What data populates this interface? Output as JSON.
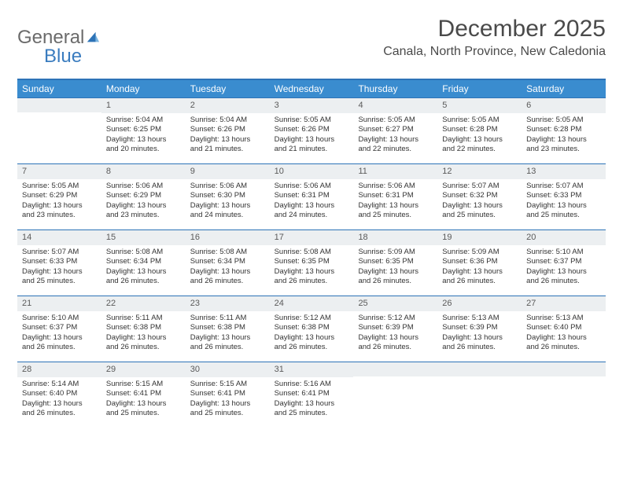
{
  "brand": {
    "text1": "General",
    "text2": "Blue"
  },
  "header": {
    "title": "December 2025",
    "location": "Canala, North Province, New Caledonia"
  },
  "style": {
    "accent": "#3a8ccf",
    "accent_border": "#2d73b7",
    "gray_bar": "#eceff1",
    "text": "#333333",
    "title_fontsize": 30,
    "location_fontsize": 16,
    "dow_fontsize": 12,
    "cell_fontsize": 9.5
  },
  "dow": [
    "Sunday",
    "Monday",
    "Tuesday",
    "Wednesday",
    "Thursday",
    "Friday",
    "Saturday"
  ],
  "weeks": [
    [
      null,
      {
        "n": "1",
        "sr": "Sunrise: 5:04 AM",
        "ss": "Sunset: 6:25 PM",
        "d1": "Daylight: 13 hours",
        "d2": "and 20 minutes."
      },
      {
        "n": "2",
        "sr": "Sunrise: 5:04 AM",
        "ss": "Sunset: 6:26 PM",
        "d1": "Daylight: 13 hours",
        "d2": "and 21 minutes."
      },
      {
        "n": "3",
        "sr": "Sunrise: 5:05 AM",
        "ss": "Sunset: 6:26 PM",
        "d1": "Daylight: 13 hours",
        "d2": "and 21 minutes."
      },
      {
        "n": "4",
        "sr": "Sunrise: 5:05 AM",
        "ss": "Sunset: 6:27 PM",
        "d1": "Daylight: 13 hours",
        "d2": "and 22 minutes."
      },
      {
        "n": "5",
        "sr": "Sunrise: 5:05 AM",
        "ss": "Sunset: 6:28 PM",
        "d1": "Daylight: 13 hours",
        "d2": "and 22 minutes."
      },
      {
        "n": "6",
        "sr": "Sunrise: 5:05 AM",
        "ss": "Sunset: 6:28 PM",
        "d1": "Daylight: 13 hours",
        "d2": "and 23 minutes."
      }
    ],
    [
      {
        "n": "7",
        "sr": "Sunrise: 5:05 AM",
        "ss": "Sunset: 6:29 PM",
        "d1": "Daylight: 13 hours",
        "d2": "and 23 minutes."
      },
      {
        "n": "8",
        "sr": "Sunrise: 5:06 AM",
        "ss": "Sunset: 6:29 PM",
        "d1": "Daylight: 13 hours",
        "d2": "and 23 minutes."
      },
      {
        "n": "9",
        "sr": "Sunrise: 5:06 AM",
        "ss": "Sunset: 6:30 PM",
        "d1": "Daylight: 13 hours",
        "d2": "and 24 minutes."
      },
      {
        "n": "10",
        "sr": "Sunrise: 5:06 AM",
        "ss": "Sunset: 6:31 PM",
        "d1": "Daylight: 13 hours",
        "d2": "and 24 minutes."
      },
      {
        "n": "11",
        "sr": "Sunrise: 5:06 AM",
        "ss": "Sunset: 6:31 PM",
        "d1": "Daylight: 13 hours",
        "d2": "and 25 minutes."
      },
      {
        "n": "12",
        "sr": "Sunrise: 5:07 AM",
        "ss": "Sunset: 6:32 PM",
        "d1": "Daylight: 13 hours",
        "d2": "and 25 minutes."
      },
      {
        "n": "13",
        "sr": "Sunrise: 5:07 AM",
        "ss": "Sunset: 6:33 PM",
        "d1": "Daylight: 13 hours",
        "d2": "and 25 minutes."
      }
    ],
    [
      {
        "n": "14",
        "sr": "Sunrise: 5:07 AM",
        "ss": "Sunset: 6:33 PM",
        "d1": "Daylight: 13 hours",
        "d2": "and 25 minutes."
      },
      {
        "n": "15",
        "sr": "Sunrise: 5:08 AM",
        "ss": "Sunset: 6:34 PM",
        "d1": "Daylight: 13 hours",
        "d2": "and 26 minutes."
      },
      {
        "n": "16",
        "sr": "Sunrise: 5:08 AM",
        "ss": "Sunset: 6:34 PM",
        "d1": "Daylight: 13 hours",
        "d2": "and 26 minutes."
      },
      {
        "n": "17",
        "sr": "Sunrise: 5:08 AM",
        "ss": "Sunset: 6:35 PM",
        "d1": "Daylight: 13 hours",
        "d2": "and 26 minutes."
      },
      {
        "n": "18",
        "sr": "Sunrise: 5:09 AM",
        "ss": "Sunset: 6:35 PM",
        "d1": "Daylight: 13 hours",
        "d2": "and 26 minutes."
      },
      {
        "n": "19",
        "sr": "Sunrise: 5:09 AM",
        "ss": "Sunset: 6:36 PM",
        "d1": "Daylight: 13 hours",
        "d2": "and 26 minutes."
      },
      {
        "n": "20",
        "sr": "Sunrise: 5:10 AM",
        "ss": "Sunset: 6:37 PM",
        "d1": "Daylight: 13 hours",
        "d2": "and 26 minutes."
      }
    ],
    [
      {
        "n": "21",
        "sr": "Sunrise: 5:10 AM",
        "ss": "Sunset: 6:37 PM",
        "d1": "Daylight: 13 hours",
        "d2": "and 26 minutes."
      },
      {
        "n": "22",
        "sr": "Sunrise: 5:11 AM",
        "ss": "Sunset: 6:38 PM",
        "d1": "Daylight: 13 hours",
        "d2": "and 26 minutes."
      },
      {
        "n": "23",
        "sr": "Sunrise: 5:11 AM",
        "ss": "Sunset: 6:38 PM",
        "d1": "Daylight: 13 hours",
        "d2": "and 26 minutes."
      },
      {
        "n": "24",
        "sr": "Sunrise: 5:12 AM",
        "ss": "Sunset: 6:38 PM",
        "d1": "Daylight: 13 hours",
        "d2": "and 26 minutes."
      },
      {
        "n": "25",
        "sr": "Sunrise: 5:12 AM",
        "ss": "Sunset: 6:39 PM",
        "d1": "Daylight: 13 hours",
        "d2": "and 26 minutes."
      },
      {
        "n": "26",
        "sr": "Sunrise: 5:13 AM",
        "ss": "Sunset: 6:39 PM",
        "d1": "Daylight: 13 hours",
        "d2": "and 26 minutes."
      },
      {
        "n": "27",
        "sr": "Sunrise: 5:13 AM",
        "ss": "Sunset: 6:40 PM",
        "d1": "Daylight: 13 hours",
        "d2": "and 26 minutes."
      }
    ],
    [
      {
        "n": "28",
        "sr": "Sunrise: 5:14 AM",
        "ss": "Sunset: 6:40 PM",
        "d1": "Daylight: 13 hours",
        "d2": "and 26 minutes."
      },
      {
        "n": "29",
        "sr": "Sunrise: 5:15 AM",
        "ss": "Sunset: 6:41 PM",
        "d1": "Daylight: 13 hours",
        "d2": "and 25 minutes."
      },
      {
        "n": "30",
        "sr": "Sunrise: 5:15 AM",
        "ss": "Sunset: 6:41 PM",
        "d1": "Daylight: 13 hours",
        "d2": "and 25 minutes."
      },
      {
        "n": "31",
        "sr": "Sunrise: 5:16 AM",
        "ss": "Sunset: 6:41 PM",
        "d1": "Daylight: 13 hours",
        "d2": "and 25 minutes."
      },
      null,
      null,
      null
    ]
  ]
}
